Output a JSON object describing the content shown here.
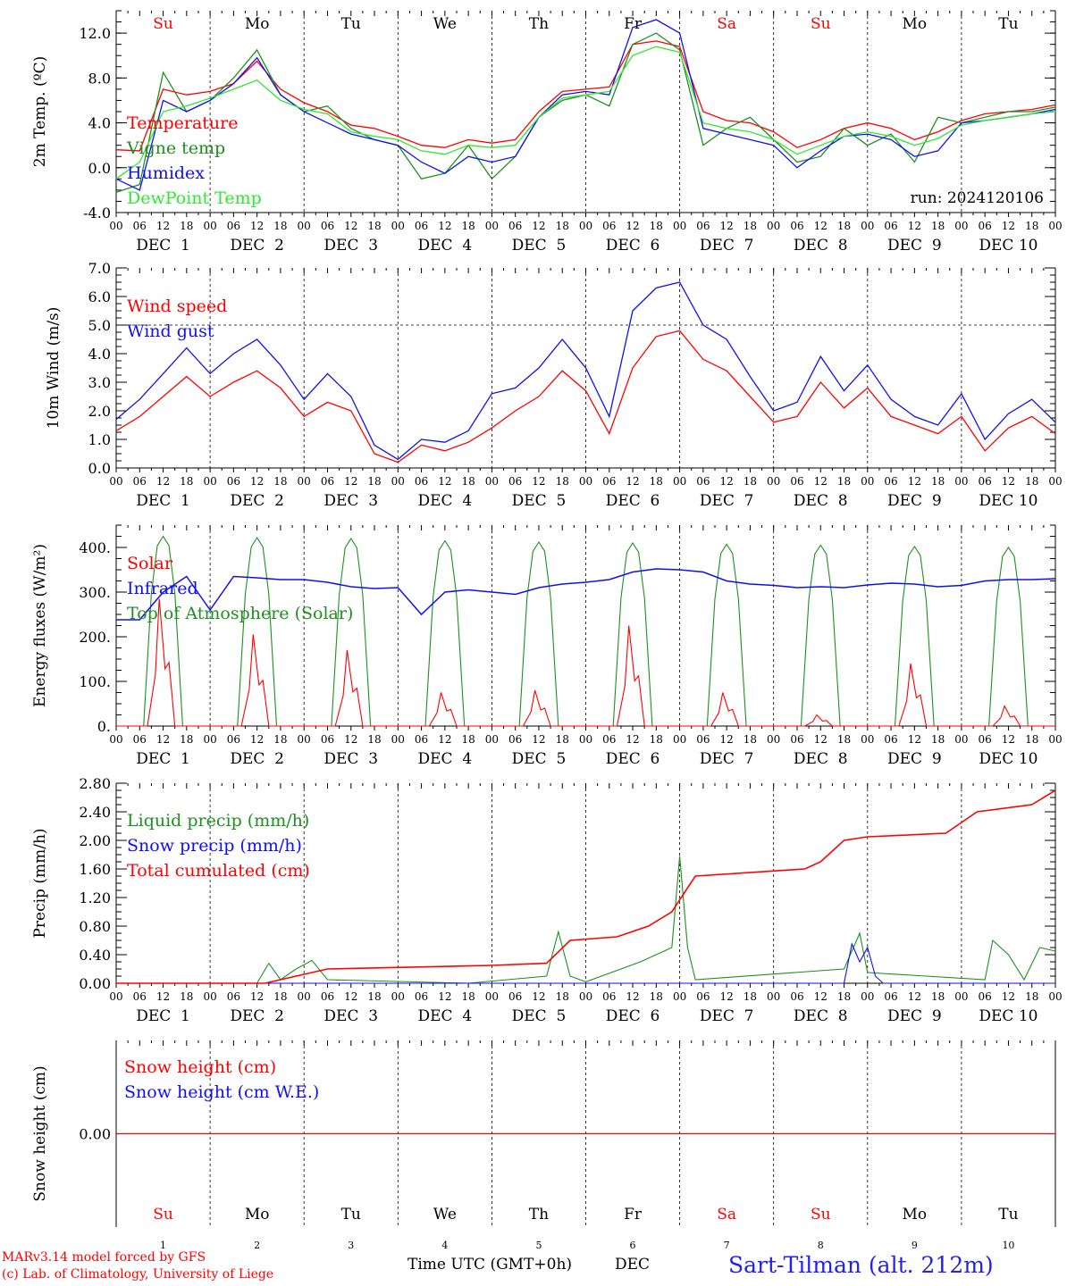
{
  "run_label": "run: 2024120106",
  "weekdays": [
    "Su",
    "Mo",
    "Tu",
    "We",
    "Th",
    "Fr",
    "Sa",
    "Su",
    "Mo",
    "Tu"
  ],
  "weekend_flags": [
    true,
    false,
    false,
    false,
    false,
    false,
    true,
    true,
    false,
    false
  ],
  "day_labels": [
    "DEC  1",
    "DEC  2",
    "DEC  3",
    "DEC  4",
    "DEC  5",
    "DEC  6",
    "DEC  7",
    "DEC  8",
    "DEC  9",
    "DEC 10"
  ],
  "day_numbers": [
    "1",
    "2",
    "3",
    "4",
    "5",
    "6",
    "7",
    "8",
    "9",
    "10"
  ],
  "hour_labels": [
    "00",
    "06",
    "12",
    "18"
  ],
  "final_hour_label": "00",
  "footer": {
    "model": "MARv3.14 model forced by GFS",
    "copyright": "(c) Lab. of Climatology, University of Liege",
    "xlabel": "Time UTC (GMT+0h)",
    "month": "DEC",
    "station": "Sart-Tilman (alt. 212m)"
  },
  "colors": {
    "red": "#ff0000",
    "green": "#1f8f1f",
    "blue": "#1010ee",
    "light_green": "#33e633",
    "weekend": "#ff0000",
    "axis": "#000000"
  },
  "chart_data": [
    {
      "type": "line",
      "ylabel": "2m Temp. (ºC)",
      "ylim": [
        -4,
        14
      ],
      "yticks": [
        "-4.0",
        "0.0",
        "4.0",
        "8.0",
        "12.0"
      ],
      "grid": "dashed lines at day boundaries",
      "legend_placement": "left",
      "x_hours": [
        0,
        6,
        12,
        18,
        24,
        30,
        36,
        42,
        48,
        54,
        60,
        66,
        72,
        78,
        84,
        90,
        96,
        102,
        108,
        114,
        120,
        126,
        132,
        138,
        144,
        150,
        156,
        162,
        168,
        174,
        180,
        186,
        192,
        198,
        204,
        210,
        216,
        222,
        228,
        234,
        240
      ],
      "series": [
        {
          "name": "Temperature",
          "color": "red",
          "values": [
            1.6,
            1.5,
            7.0,
            6.5,
            6.8,
            7.5,
            9.5,
            7.0,
            5.8,
            5.0,
            3.8,
            3.5,
            2.8,
            2.0,
            1.8,
            2.5,
            2.2,
            2.5,
            5.0,
            6.8,
            7.0,
            7.2,
            11.0,
            11.3,
            10.8,
            5.0,
            4.2,
            4.0,
            3.2,
            1.8,
            2.5,
            3.5,
            4.0,
            3.5,
            2.5,
            3.2,
            4.2,
            4.8,
            5.0,
            5.2,
            5.6
          ]
        },
        {
          "name": "Vigne temp",
          "color": "green",
          "values": [
            -2.2,
            -1.5,
            8.5,
            5.0,
            6.0,
            8.0,
            10.5,
            6.5,
            5.0,
            5.5,
            3.5,
            2.5,
            2.0,
            -1.0,
            -0.5,
            2.0,
            -1.0,
            1.0,
            4.5,
            6.0,
            6.5,
            5.5,
            11.0,
            12.0,
            10.5,
            2.0,
            3.5,
            4.5,
            2.5,
            0.5,
            1.0,
            3.5,
            2.0,
            3.0,
            0.5,
            4.5,
            4.0,
            4.5,
            5.0,
            5.0,
            5.4
          ]
        },
        {
          "name": "Humidex",
          "color": "blue",
          "values": [
            -1.0,
            -2.0,
            6.0,
            5.0,
            6.0,
            7.5,
            9.8,
            6.5,
            5.0,
            4.0,
            3.0,
            2.5,
            2.0,
            0.5,
            -0.5,
            1.0,
            0.5,
            1.0,
            4.5,
            6.5,
            6.8,
            6.5,
            12.5,
            13.2,
            12.0,
            3.5,
            3.0,
            2.5,
            2.0,
            0.0,
            1.5,
            2.8,
            3.0,
            2.5,
            1.0,
            1.5,
            4.0,
            4.2,
            4.5,
            4.8,
            5.2
          ]
        },
        {
          "name": "DewPoint Temp",
          "color": "light_green",
          "values": [
            -1.0,
            0.5,
            5.0,
            5.5,
            6.2,
            7.0,
            7.8,
            6.0,
            5.2,
            4.8,
            3.2,
            2.8,
            2.5,
            1.5,
            1.2,
            2.0,
            1.8,
            2.0,
            4.5,
            6.2,
            6.5,
            6.8,
            10.0,
            10.8,
            10.3,
            4.0,
            3.5,
            3.2,
            2.5,
            1.2,
            2.0,
            2.8,
            3.2,
            2.8,
            2.0,
            2.6,
            3.8,
            4.2,
            4.5,
            4.8,
            5.0
          ]
        }
      ]
    },
    {
      "type": "line",
      "ylabel": "10m Wind (m/s)",
      "ylim": [
        0,
        7
      ],
      "yticks": [
        "0.0",
        "1.0",
        "2.0",
        "3.0",
        "4.0",
        "5.0",
        "6.0",
        "7.0"
      ],
      "reference_line": 5.0,
      "legend_placement": "left",
      "x_hours": [
        0,
        6,
        12,
        18,
        24,
        30,
        36,
        42,
        48,
        54,
        60,
        66,
        72,
        78,
        84,
        90,
        96,
        102,
        108,
        114,
        120,
        126,
        132,
        138,
        144,
        150,
        156,
        162,
        168,
        174,
        180,
        186,
        192,
        198,
        204,
        210,
        216,
        222,
        228,
        234,
        240
      ],
      "series": [
        {
          "name": "Wind speed",
          "color": "red",
          "values": [
            1.3,
            1.8,
            2.5,
            3.2,
            2.5,
            3.0,
            3.4,
            2.8,
            1.8,
            2.3,
            2.0,
            0.5,
            0.2,
            0.8,
            0.6,
            0.9,
            1.4,
            2.0,
            2.5,
            3.4,
            2.7,
            1.2,
            3.5,
            4.6,
            4.8,
            3.8,
            3.4,
            2.5,
            1.6,
            1.8,
            3.0,
            2.1,
            2.8,
            1.8,
            1.5,
            1.2,
            1.8,
            0.6,
            1.4,
            1.8,
            1.2
          ]
        },
        {
          "name": "Wind gust",
          "color": "blue",
          "values": [
            1.7,
            2.4,
            3.3,
            4.2,
            3.3,
            4.0,
            4.5,
            3.6,
            2.4,
            3.3,
            2.5,
            0.8,
            0.3,
            1.0,
            0.9,
            1.3,
            2.6,
            2.8,
            3.5,
            4.5,
            3.5,
            1.8,
            5.5,
            6.3,
            6.5,
            5.0,
            4.5,
            3.2,
            2.0,
            2.3,
            3.9,
            2.7,
            3.6,
            2.4,
            1.8,
            1.5,
            2.6,
            1.0,
            1.9,
            2.4,
            1.6
          ]
        }
      ]
    },
    {
      "type": "line",
      "ylabel": "Energy fluxes (W/m²)",
      "ylim": [
        0,
        450
      ],
      "yticks": [
        "0.",
        "100.",
        "200.",
        "300.",
        "400."
      ],
      "legend_placement": "left",
      "series": [
        {
          "name": "Solar",
          "color": "red",
          "daily_peak": [
            285,
            205,
            170,
            75,
            80,
            225,
            75,
            25,
            140,
            45
          ]
        },
        {
          "name": "Infrared",
          "color": "blue",
          "x_hours": [
            0,
            6,
            12,
            18,
            24,
            30,
            36,
            42,
            48,
            54,
            60,
            66,
            72,
            78,
            84,
            90,
            96,
            102,
            108,
            114,
            120,
            126,
            132,
            138,
            144,
            150,
            156,
            162,
            168,
            174,
            180,
            186,
            192,
            198,
            204,
            210,
            216,
            222,
            228,
            234,
            240
          ],
          "values": [
            238,
            238,
            300,
            335,
            260,
            335,
            332,
            328,
            328,
            322,
            312,
            308,
            310,
            250,
            300,
            305,
            300,
            295,
            310,
            318,
            322,
            328,
            345,
            352,
            350,
            345,
            325,
            318,
            315,
            310,
            312,
            310,
            316,
            320,
            318,
            312,
            315,
            325,
            328,
            328,
            330
          ]
        },
        {
          "name": "Top of Atmosphere (Solar)",
          "color": "green",
          "daily_peak": [
            425,
            422,
            420,
            415,
            412,
            410,
            407,
            405,
            402,
            400
          ]
        }
      ]
    },
    {
      "type": "line",
      "ylabel": "Precip (mm/h)",
      "ylim": [
        0,
        2.8
      ],
      "yticks": [
        "0.00",
        "0.40",
        "0.80",
        "1.20",
        "1.60",
        "2.00",
        "2.40",
        "2.80"
      ],
      "legend_placement": "left",
      "series": [
        {
          "name": "Liquid precip (mm/h)",
          "color": "green",
          "points": [
            [
              0,
              0
            ],
            [
              36,
              0
            ],
            [
              39,
              0.28
            ],
            [
              42,
              0.05
            ],
            [
              46,
              0.2
            ],
            [
              50,
              0.32
            ],
            [
              54,
              0.05
            ],
            [
              90,
              0
            ],
            [
              110,
              0.1
            ],
            [
              113,
              0.72
            ],
            [
              116,
              0.1
            ],
            [
              120,
              0.02
            ],
            [
              134,
              0.3
            ],
            [
              138,
              0.4
            ],
            [
              142,
              0.5
            ],
            [
              144,
              1.78
            ],
            [
              146,
              0.5
            ],
            [
              148,
              0.05
            ],
            [
              186,
              0.2
            ],
            [
              190,
              0.7
            ],
            [
              192,
              0.15
            ],
            [
              222,
              0.05
            ],
            [
              224,
              0.6
            ],
            [
              228,
              0.4
            ],
            [
              232,
              0.05
            ],
            [
              236,
              0.5
            ],
            [
              240,
              0.45
            ]
          ]
        },
        {
          "name": "Snow precip (mm/h)",
          "color": "blue",
          "points": [
            [
              0,
              0
            ],
            [
              186,
              0
            ],
            [
              188,
              0.55
            ],
            [
              190,
              0.3
            ],
            [
              192,
              0.5
            ],
            [
              194,
              0.1
            ],
            [
              196,
              0
            ],
            [
              240,
              0
            ]
          ]
        },
        {
          "name": "Total cumulated (cm)",
          "color": "red",
          "points": [
            [
              0,
              0
            ],
            [
              38,
              0
            ],
            [
              46,
              0.1
            ],
            [
              54,
              0.2
            ],
            [
              96,
              0.25
            ],
            [
              110,
              0.28
            ],
            [
              116,
              0.6
            ],
            [
              128,
              0.65
            ],
            [
              136,
              0.8
            ],
            [
              142,
              1.0
            ],
            [
              148,
              1.5
            ],
            [
              176,
              1.6
            ],
            [
              180,
              1.7
            ],
            [
              186,
              2.0
            ],
            [
              192,
              2.05
            ],
            [
              212,
              2.1
            ],
            [
              220,
              2.4
            ],
            [
              234,
              2.5
            ],
            [
              240,
              2.7
            ]
          ]
        }
      ]
    },
    {
      "type": "line",
      "ylabel": "Snow height (cm)",
      "yticks": [
        "0.00"
      ],
      "legend_placement": "left",
      "series": [
        {
          "name": "Snow height (cm)",
          "color": "red",
          "values": [
            0,
            0
          ]
        },
        {
          "name": "Snow height (cm W.E.)",
          "color": "blue",
          "values": [
            0,
            0
          ]
        }
      ]
    }
  ]
}
